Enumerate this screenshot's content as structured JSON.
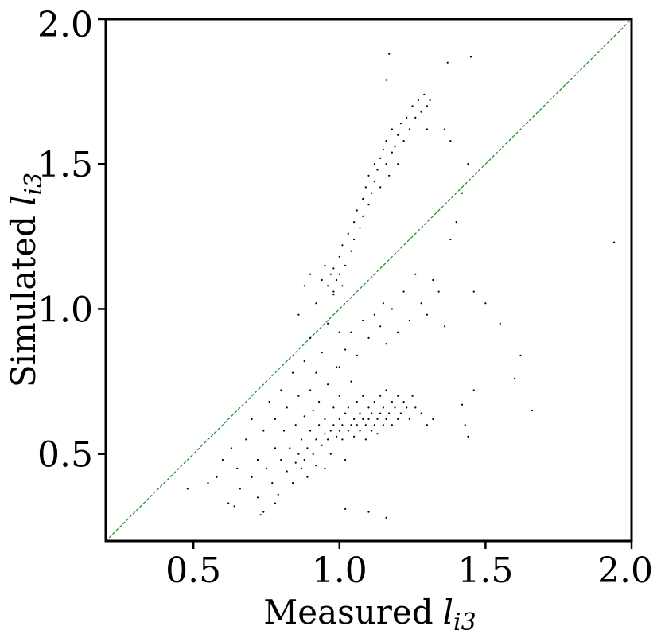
{
  "chart_data": {
    "type": "scatter",
    "title": "",
    "xlabel": "Measured",
    "xlabel_var": "l",
    "xlabel_sub": "i3",
    "ylabel": "Simulated",
    "ylabel_var": "l",
    "ylabel_sub": "i3",
    "xlim": [
      0.2,
      2.0
    ],
    "ylim": [
      0.2,
      2.0
    ],
    "xticks": [
      0.5,
      1.0,
      1.5,
      2.0
    ],
    "yticks": [
      0.5,
      1.0,
      1.5,
      2.0
    ],
    "xtick_labels": [
      "0.5",
      "1.0",
      "1.5",
      "2.0"
    ],
    "ytick_labels": [
      "0.5",
      "1.0",
      "1.5",
      "2.0"
    ],
    "grid": false,
    "legend": "none",
    "reference_line": {
      "type": "identity",
      "x": [
        0.2,
        2.0
      ],
      "y": [
        0.2,
        2.0
      ],
      "color": "#1a8a1a",
      "style": "dashed"
    },
    "point_color": "#000000",
    "series": [
      {
        "points": [
          [
            0.48,
            0.38
          ],
          [
            0.55,
            0.4
          ],
          [
            0.58,
            0.42
          ],
          [
            0.62,
            0.33
          ],
          [
            0.6,
            0.48
          ],
          [
            0.63,
            0.52
          ],
          [
            0.65,
            0.45
          ],
          [
            0.66,
            0.38
          ],
          [
            0.68,
            0.55
          ],
          [
            0.7,
            0.42
          ],
          [
            0.7,
            0.62
          ],
          [
            0.72,
            0.48
          ],
          [
            0.72,
            0.35
          ],
          [
            0.74,
            0.58
          ],
          [
            0.74,
            0.3
          ],
          [
            0.75,
            0.45
          ],
          [
            0.76,
            0.68
          ],
          [
            0.77,
            0.4
          ],
          [
            0.78,
            0.52
          ],
          [
            0.78,
            0.62
          ],
          [
            0.79,
            0.36
          ],
          [
            0.8,
            0.48
          ],
          [
            0.8,
            0.72
          ],
          [
            0.81,
            0.58
          ],
          [
            0.82,
            0.44
          ],
          [
            0.82,
            0.66
          ],
          [
            0.83,
            0.52
          ],
          [
            0.84,
            0.78
          ],
          [
            0.84,
            0.4
          ],
          [
            0.85,
            0.47
          ],
          [
            0.85,
            0.6
          ],
          [
            0.86,
            0.5
          ],
          [
            0.86,
            0.7
          ],
          [
            0.87,
            0.45
          ],
          [
            0.87,
            0.55
          ],
          [
            0.88,
            0.48
          ],
          [
            0.88,
            0.63
          ],
          [
            0.88,
            0.82
          ],
          [
            0.89,
            0.52
          ],
          [
            0.89,
            0.42
          ],
          [
            0.9,
            0.58
          ],
          [
            0.9,
            0.72
          ],
          [
            0.9,
            0.9
          ],
          [
            0.91,
            0.5
          ],
          [
            0.91,
            0.65
          ],
          [
            0.92,
            0.55
          ],
          [
            0.92,
            0.46
          ],
          [
            0.92,
            0.78
          ],
          [
            0.93,
            0.6
          ],
          [
            0.93,
            0.68
          ],
          [
            0.94,
            0.53
          ],
          [
            0.94,
            0.85
          ],
          [
            0.95,
            0.57
          ],
          [
            0.95,
            0.62
          ],
          [
            0.95,
            0.45
          ],
          [
            0.96,
            0.55
          ],
          [
            0.96,
            0.74
          ],
          [
            0.96,
            0.95
          ],
          [
            0.97,
            0.58
          ],
          [
            0.97,
            0.5
          ],
          [
            0.98,
            0.6
          ],
          [
            0.98,
            0.66
          ],
          [
            0.98,
            1.05
          ],
          [
            0.99,
            0.56
          ],
          [
            0.99,
            0.8
          ],
          [
            1.0,
            0.58
          ],
          [
            1.0,
            0.62
          ],
          [
            1.0,
            0.7
          ],
          [
            1.0,
            0.92
          ],
          [
            1.01,
            0.55
          ],
          [
            1.01,
            0.6
          ],
          [
            1.02,
            0.64
          ],
          [
            1.02,
            0.48
          ],
          [
            1.03,
            0.58
          ],
          [
            1.03,
            0.66
          ],
          [
            1.04,
            0.6
          ],
          [
            1.04,
            0.75
          ],
          [
            1.05,
            0.62
          ],
          [
            1.05,
            0.56
          ],
          [
            1.06,
            0.6
          ],
          [
            1.06,
            0.68
          ],
          [
            1.07,
            0.58
          ],
          [
            1.07,
            0.64
          ],
          [
            1.08,
            0.62
          ],
          [
            1.08,
            0.7
          ],
          [
            1.09,
            0.6
          ],
          [
            1.09,
            0.55
          ],
          [
            1.1,
            0.62
          ],
          [
            1.1,
            0.66
          ],
          [
            1.11,
            0.58
          ],
          [
            1.11,
            0.64
          ],
          [
            1.12,
            0.6
          ],
          [
            1.12,
            0.68
          ],
          [
            1.13,
            0.62
          ],
          [
            1.13,
            0.57
          ],
          [
            1.14,
            0.64
          ],
          [
            1.14,
            0.7
          ],
          [
            1.15,
            0.6
          ],
          [
            1.15,
            0.66
          ],
          [
            1.16,
            0.62
          ],
          [
            1.16,
            0.72
          ],
          [
            1.17,
            0.64
          ],
          [
            1.18,
            0.6
          ],
          [
            1.18,
            0.68
          ],
          [
            1.19,
            0.66
          ],
          [
            1.2,
            0.62
          ],
          [
            1.2,
            0.7
          ],
          [
            1.21,
            0.64
          ],
          [
            1.22,
            0.68
          ],
          [
            1.23,
            0.66
          ],
          [
            1.24,
            0.62
          ],
          [
            1.25,
            0.7
          ],
          [
            1.26,
            0.66
          ],
          [
            1.28,
            0.64
          ],
          [
            1.3,
            0.6
          ],
          [
            1.32,
            0.62
          ],
          [
            0.86,
            0.98
          ],
          [
            0.88,
            1.08
          ],
          [
            0.9,
            1.12
          ],
          [
            0.92,
            1.02
          ],
          [
            0.94,
            1.1
          ],
          [
            0.95,
            1.15
          ],
          [
            0.96,
            1.08
          ],
          [
            0.97,
            1.12
          ],
          [
            0.98,
            1.14
          ],
          [
            0.98,
            1.06
          ],
          [
            0.99,
            1.1
          ],
          [
            1.0,
            1.12
          ],
          [
            1.0,
            1.18
          ],
          [
            1.01,
            1.08
          ],
          [
            1.01,
            1.22
          ],
          [
            1.02,
            1.15
          ],
          [
            1.03,
            1.26
          ],
          [
            1.04,
            1.2
          ],
          [
            1.05,
            1.3
          ],
          [
            1.05,
            1.24
          ],
          [
            1.06,
            1.34
          ],
          [
            1.07,
            1.28
          ],
          [
            1.08,
            1.38
          ],
          [
            1.08,
            1.32
          ],
          [
            1.09,
            1.42
          ],
          [
            1.1,
            1.36
          ],
          [
            1.1,
            1.46
          ],
          [
            1.11,
            1.4
          ],
          [
            1.12,
            1.5
          ],
          [
            1.12,
            1.44
          ],
          [
            1.13,
            1.48
          ],
          [
            1.14,
            1.52
          ],
          [
            1.14,
            1.42
          ],
          [
            1.15,
            1.55
          ],
          [
            1.16,
            1.5
          ],
          [
            1.16,
            1.58
          ],
          [
            1.17,
            1.46
          ],
          [
            1.18,
            1.54
          ],
          [
            1.18,
            1.62
          ],
          [
            1.19,
            1.56
          ],
          [
            1.2,
            1.6
          ],
          [
            1.2,
            1.5
          ],
          [
            1.21,
            1.64
          ],
          [
            1.22,
            1.58
          ],
          [
            1.23,
            1.66
          ],
          [
            1.24,
            1.62
          ],
          [
            1.25,
            1.7
          ],
          [
            1.26,
            1.66
          ],
          [
            1.27,
            1.72
          ],
          [
            1.28,
            1.68
          ],
          [
            1.29,
            1.74
          ],
          [
            1.3,
            1.7
          ],
          [
            1.3,
            1.62
          ],
          [
            1.31,
            1.72
          ],
          [
            1.0,
            0.8
          ],
          [
            1.02,
            0.86
          ],
          [
            1.04,
            0.92
          ],
          [
            1.06,
            0.84
          ],
          [
            1.08,
            0.96
          ],
          [
            1.1,
            0.9
          ],
          [
            1.12,
            0.98
          ],
          [
            1.14,
            0.94
          ],
          [
            1.15,
            1.02
          ],
          [
            1.16,
            0.88
          ],
          [
            1.18,
            1.0
          ],
          [
            1.2,
            0.92
          ],
          [
            1.22,
            1.06
          ],
          [
            1.24,
            0.96
          ],
          [
            1.26,
            1.12
          ],
          [
            1.28,
            1.02
          ],
          [
            1.3,
            0.98
          ],
          [
            1.32,
            1.1
          ],
          [
            1.34,
            1.06
          ],
          [
            1.36,
            0.94
          ],
          [
            1.38,
            1.24
          ],
          [
            1.4,
            1.3
          ],
          [
            1.42,
            1.4
          ],
          [
            1.44,
            1.5
          ],
          [
            1.46,
            1.06
          ],
          [
            1.5,
            1.02
          ],
          [
            1.55,
            0.95
          ],
          [
            1.6,
            0.76
          ],
          [
            1.62,
            0.84
          ],
          [
            1.66,
            0.65
          ],
          [
            1.94,
            1.23
          ],
          [
            1.37,
            1.85
          ],
          [
            1.45,
            1.87
          ],
          [
            1.17,
            1.88
          ],
          [
            1.16,
            1.79
          ],
          [
            1.36,
            1.62
          ],
          [
            1.38,
            1.58
          ],
          [
            1.43,
            0.6
          ],
          [
            1.44,
            0.56
          ],
          [
            1.42,
            0.67
          ],
          [
            1.46,
            0.72
          ],
          [
            1.16,
            0.28
          ],
          [
            1.1,
            0.3
          ],
          [
            1.02,
            0.31
          ],
          [
            0.78,
            0.33
          ],
          [
            0.64,
            0.32
          ],
          [
            0.73,
            0.29
          ]
        ]
      }
    ]
  }
}
